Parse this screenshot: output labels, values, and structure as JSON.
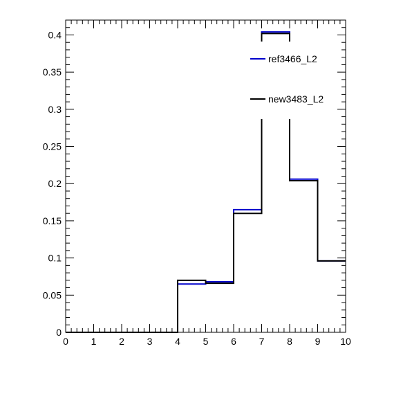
{
  "chart_data": {
    "type": "step-histogram",
    "x_edges": [
      0,
      1,
      2,
      3,
      4,
      5,
      6,
      7,
      8,
      9,
      10
    ],
    "xlim": [
      0,
      10
    ],
    "ylim": [
      0,
      0.42
    ],
    "x_ticks": [
      0,
      1,
      2,
      3,
      4,
      5,
      6,
      7,
      8,
      9,
      10
    ],
    "y_ticks": [
      0,
      0.05,
      0.1,
      0.15,
      0.2,
      0.25,
      0.3,
      0.35,
      0.4
    ],
    "x_tick_labels": [
      "0",
      "1",
      "2",
      "3",
      "4",
      "5",
      "6",
      "7",
      "8",
      "9",
      "10"
    ],
    "y_tick_labels": [
      "0",
      "0.05",
      "0.1",
      "0.15",
      "0.2",
      "0.25",
      "0.3",
      "0.35",
      "0.4"
    ],
    "grid": false,
    "legend_position": "top-right",
    "series": [
      {
        "name": "ref3466_L2",
        "color": "#0000cc",
        "values": [
          0,
          0,
          0,
          0,
          0.065,
          0.068,
          0.165,
          0.404,
          0.206,
          0.096
        ]
      },
      {
        "name": "new3483_L2",
        "color": "#000000",
        "values": [
          0,
          0,
          0,
          0,
          0.07,
          0.066,
          0.16,
          0.402,
          0.204,
          0.096
        ]
      }
    ]
  }
}
